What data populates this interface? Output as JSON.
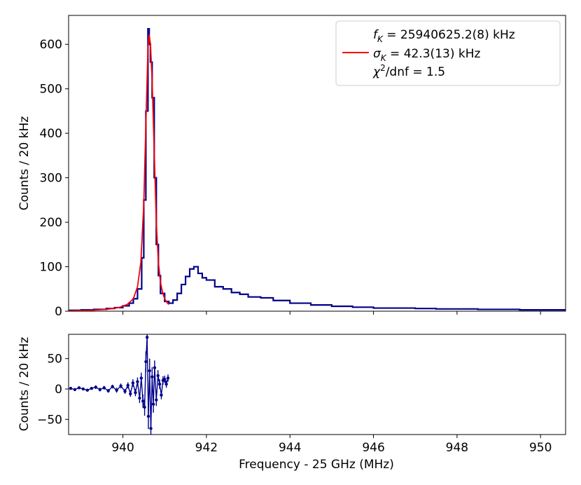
{
  "chart_data": [
    {
      "type": "line",
      "panel": "main",
      "xlabel": "",
      "ylabel": "Counts / 20 kHz",
      "xlim": [
        938.7,
        950.6
      ],
      "ylim": [
        0,
        665
      ],
      "x_ticks": [
        940,
        942,
        944,
        946,
        948,
        950
      ],
      "y_ticks": [
        0,
        100,
        200,
        300,
        400,
        500,
        600
      ],
      "y_tick_labels": [
        "0",
        "100",
        "200",
        "300",
        "400",
        "500",
        "600"
      ],
      "grid": false,
      "legend_position": "top-right",
      "legend": {
        "line1": "f",
        "line1_sub": "K",
        "line1_rest": " = 25940625.2(8) kHz",
        "line2": "σ",
        "line2_sub": "K",
        "line2_rest": " = 42.3(13) kHz",
        "line3": "χ",
        "line3_sup": "2",
        "line3_rest": "/dnf = 1.5"
      },
      "series": [
        {
          "kind": "histogram",
          "color": "#00008b",
          "x": [
            938.7,
            939.0,
            939.3,
            939.6,
            939.8,
            940.0,
            940.15,
            940.25,
            940.35,
            940.45,
            940.5,
            940.55,
            940.6,
            940.63,
            940.66,
            940.7,
            940.75,
            940.8,
            940.85,
            940.9,
            941.0,
            941.1,
            941.2,
            941.3,
            941.4,
            941.5,
            941.6,
            941.7,
            941.8,
            941.9,
            942.0,
            942.2,
            942.4,
            942.6,
            942.8,
            943.0,
            943.3,
            943.6,
            944.0,
            944.5,
            945.0,
            945.5,
            946.0,
            946.5,
            947.0,
            947.5,
            948.0,
            948.5,
            949.0,
            949.5,
            950.0,
            950.6
          ],
          "y": [
            2,
            3,
            4,
            6,
            8,
            12,
            18,
            28,
            50,
            120,
            250,
            450,
            635,
            600,
            560,
            480,
            300,
            150,
            80,
            40,
            22,
            18,
            25,
            40,
            60,
            78,
            95,
            100,
            85,
            75,
            70,
            55,
            50,
            42,
            38,
            32,
            30,
            24,
            18,
            14,
            11,
            9,
            7,
            7,
            6,
            5,
            5,
            4,
            4,
            3,
            3,
            3
          ]
        },
        {
          "kind": "fit",
          "color": "#ff0000",
          "x": [
            938.7,
            939.2,
            939.6,
            939.9,
            940.1,
            940.25,
            940.35,
            940.43,
            940.5,
            940.55,
            940.6,
            940.63,
            940.66,
            940.7,
            940.75,
            940.8,
            940.85,
            940.9,
            940.95,
            941.0,
            941.05,
            941.1
          ],
          "y": [
            1,
            2,
            4,
            8,
            15,
            28,
            55,
            110,
            240,
            420,
            590,
            622,
            600,
            520,
            360,
            200,
            110,
            65,
            42,
            28,
            20,
            15
          ]
        }
      ]
    },
    {
      "type": "scatter",
      "panel": "residuals",
      "xlabel": "Frequency - 25 GHz (MHz)",
      "ylabel": "Counts / 20 kHz",
      "xlim": [
        938.7,
        950.6
      ],
      "ylim": [
        -75,
        90
      ],
      "x_ticks": [
        940,
        942,
        944,
        946,
        948,
        950
      ],
      "x_tick_labels": [
        "940",
        "942",
        "944",
        "946",
        "948",
        "950"
      ],
      "y_ticks": [
        -50,
        0,
        50
      ],
      "y_tick_labels": [
        "−50",
        "0",
        "50"
      ],
      "grid": false,
      "series": [
        {
          "color": "#00008b",
          "x": [
            938.75,
            938.85,
            938.95,
            939.05,
            939.15,
            939.25,
            939.35,
            939.45,
            939.55,
            939.65,
            939.75,
            939.85,
            939.95,
            940.05,
            940.12,
            940.18,
            940.24,
            940.3,
            940.35,
            940.4,
            940.44,
            940.48,
            940.52,
            940.55,
            940.58,
            940.61,
            940.64,
            940.67,
            940.7,
            940.73,
            940.76,
            940.8,
            940.84,
            940.88,
            940.92,
            940.96,
            941.0,
            941.04,
            941.08
          ],
          "y": [
            1,
            -1,
            2,
            0,
            -2,
            1,
            3,
            -1,
            2,
            -3,
            4,
            -2,
            5,
            -4,
            6,
            -8,
            10,
            -6,
            12,
            -15,
            18,
            -20,
            -30,
            45,
            85,
            -45,
            30,
            -65,
            20,
            -25,
            35,
            -18,
            22,
            8,
            -10,
            14,
            16,
            8,
            18
          ],
          "err": [
            2,
            2,
            2,
            2,
            2,
            2,
            3,
            3,
            3,
            3,
            3,
            4,
            4,
            4,
            5,
            5,
            6,
            6,
            7,
            8,
            9,
            11,
            14,
            17,
            20,
            21,
            20,
            18,
            16,
            14,
            12,
            10,
            9,
            8,
            7,
            7,
            6,
            6,
            6
          ]
        }
      ]
    }
  ]
}
